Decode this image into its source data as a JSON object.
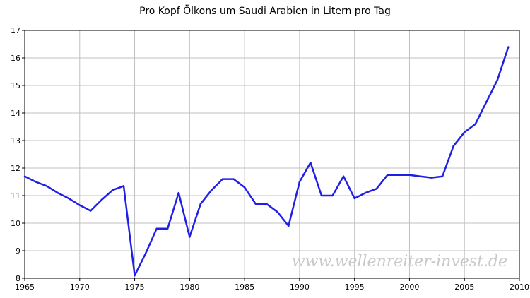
{
  "chart_data": {
    "type": "line",
    "title": "Pro Kopf Ölkons um Saudi Arabien in Litern pro Tag",
    "xlabel": "",
    "ylabel": "",
    "xlim": [
      1965,
      2010
    ],
    "ylim": [
      8,
      17
    ],
    "x_ticks": [
      "1965",
      "1970",
      "1975",
      "1980",
      "1985",
      "1990",
      "1995",
      "2000",
      "2005",
      "2010"
    ],
    "y_ticks": [
      "8",
      "9",
      "10",
      "11",
      "12",
      "13",
      "14",
      "15",
      "16",
      "17"
    ],
    "grid": true,
    "watermark": "www.wellenreiter-invest.de",
    "colors": {
      "line": "#1f1fe6",
      "grid": "#c0c0c0",
      "axis": "#000000"
    },
    "series": [
      {
        "x": [
          1965,
          1966,
          1967,
          1968,
          1969,
          1970,
          1971,
          1972,
          1973,
          1974,
          1975,
          1976,
          1977,
          1978,
          1979,
          1980,
          1981,
          1982,
          1983,
          1984,
          1985,
          1986,
          1987,
          1988,
          1989,
          1990,
          1991,
          1992,
          1993,
          1994,
          1995,
          1996,
          1997,
          1998,
          1999,
          2000,
          2001,
          2002,
          2003,
          2004,
          2005,
          2006,
          2007,
          2008,
          2009
        ],
        "values": [
          11.7,
          11.5,
          11.35,
          11.1,
          10.9,
          10.65,
          10.45,
          10.85,
          11.2,
          11.35,
          8.1,
          8.9,
          9.8,
          9.8,
          11.1,
          9.5,
          10.7,
          11.2,
          11.6,
          11.6,
          11.3,
          10.7,
          10.7,
          10.4,
          9.9,
          11.5,
          12.2,
          11.0,
          11.0,
          11.7,
          10.9,
          11.1,
          11.25,
          11.75,
          11.75,
          11.75,
          11.7,
          11.65,
          11.7,
          12.8,
          13.3,
          13.6,
          14.4,
          15.2,
          16.4
        ]
      }
    ]
  }
}
